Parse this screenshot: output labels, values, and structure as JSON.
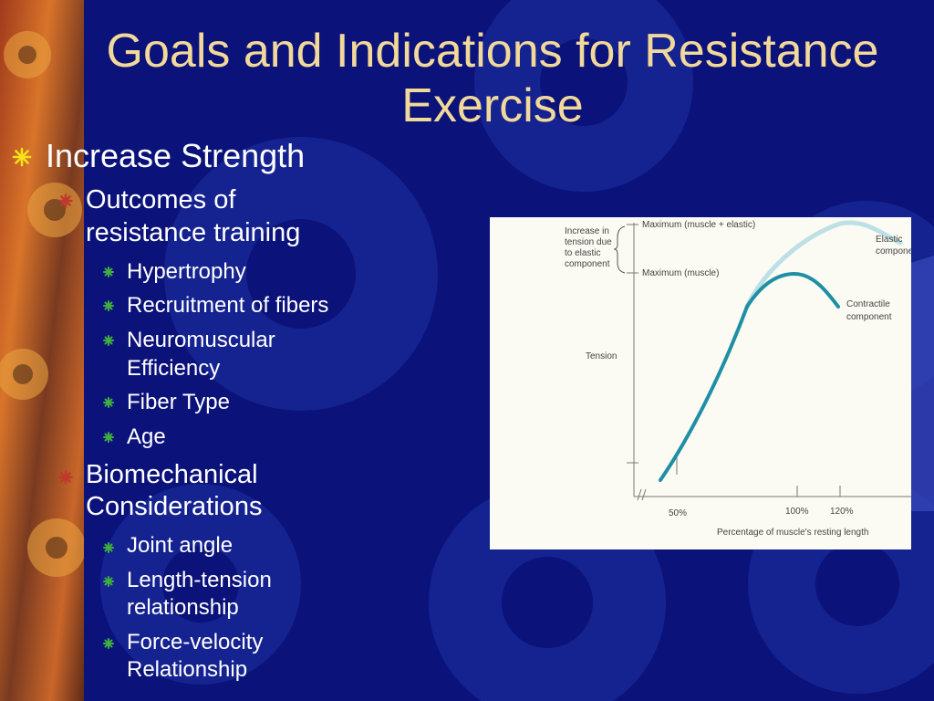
{
  "slide": {
    "title": "Goals and Indications for Resistance Exercise",
    "bullets": {
      "increase_strength": "Increase Strength",
      "outcomes": {
        "label_line1": "Outcomes of",
        "label_line2": "resistance training",
        "items": {
          "hypertrophy": "Hypertrophy",
          "recruitment": "Recruitment of fibers",
          "neuro_line1": "Neuromuscular",
          "neuro_line2": "Efficiency",
          "fiber_type": "Fiber Type",
          "age": "Age"
        }
      },
      "biomech": {
        "label_line1": "Biomechanical",
        "label_line2": "Considerations",
        "items": {
          "joint_angle": "Joint angle",
          "lt_line1": "Length-tension",
          "lt_line2": "relationship",
          "fv_line1": "Force-velocity",
          "fv_line2": "Relationship"
        }
      }
    },
    "figure": {
      "labels": {
        "increase_1": "Increase in",
        "increase_2": "tension due",
        "increase_3": "to elastic",
        "increase_4": "component",
        "max_total": "Maximum (muscle + elastic)",
        "max_muscle": "Maximum (muscle)",
        "tension": "Tension",
        "elastic_1": "Elastic",
        "elastic_2": "compone",
        "contractile_1": "Contractile",
        "contractile_2": "component",
        "tick_50": "50%",
        "tick_100": "100%",
        "tick_120": "120%",
        "xlabel": "Percentage of muscle's resting length"
      }
    },
    "colors": {
      "background": "#0b127a",
      "title": "#f2d99a",
      "text": "#ffffff",
      "level1_bullet": "#f5e21a",
      "level2_bullet": "#c0392b",
      "level3_bullet": "#3fae3f",
      "contractile_curve": "#1f8fa5",
      "elastic_curve": "#bde0e6"
    }
  }
}
